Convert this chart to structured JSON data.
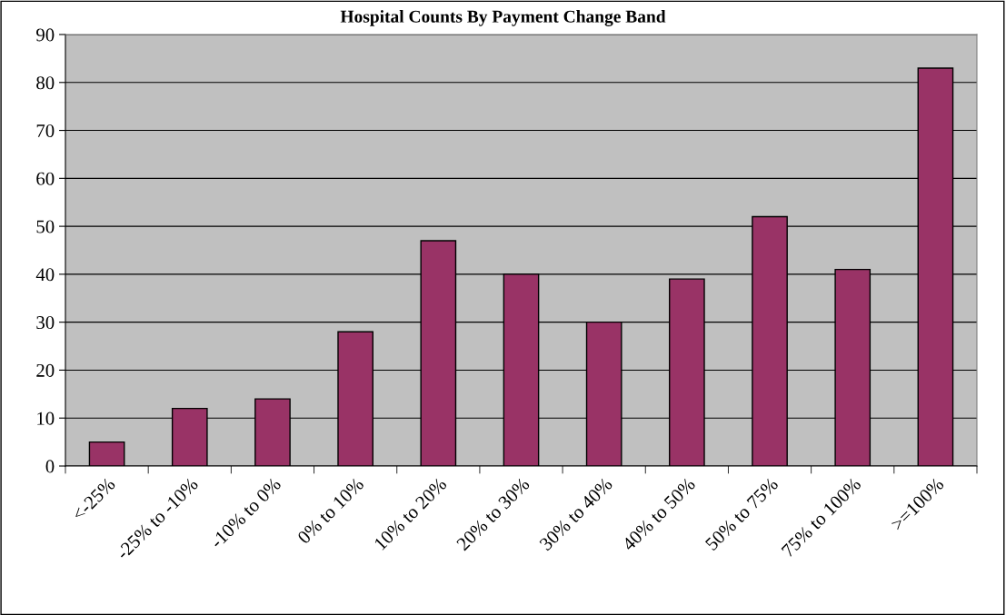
{
  "chart_data": {
    "type": "bar",
    "title": "Hospital Counts By Payment Change Band",
    "categories": [
      "<-25%",
      "-25% to -10%",
      "-10% to 0%",
      "0% to 10%",
      "10% to 20%",
      "20% to 30%",
      "30% to 40%",
      "40% to 50%",
      "50% to 75%",
      "75% to 100%",
      ">=100%"
    ],
    "values": [
      5,
      12,
      14,
      28,
      47,
      40,
      30,
      39,
      52,
      41,
      83
    ],
    "color": "#993366",
    "ylim": [
      0,
      90
    ],
    "yticks": [
      0,
      10,
      20,
      30,
      40,
      50,
      60,
      70,
      80,
      90
    ],
    "grid": "y",
    "legend": false
  }
}
